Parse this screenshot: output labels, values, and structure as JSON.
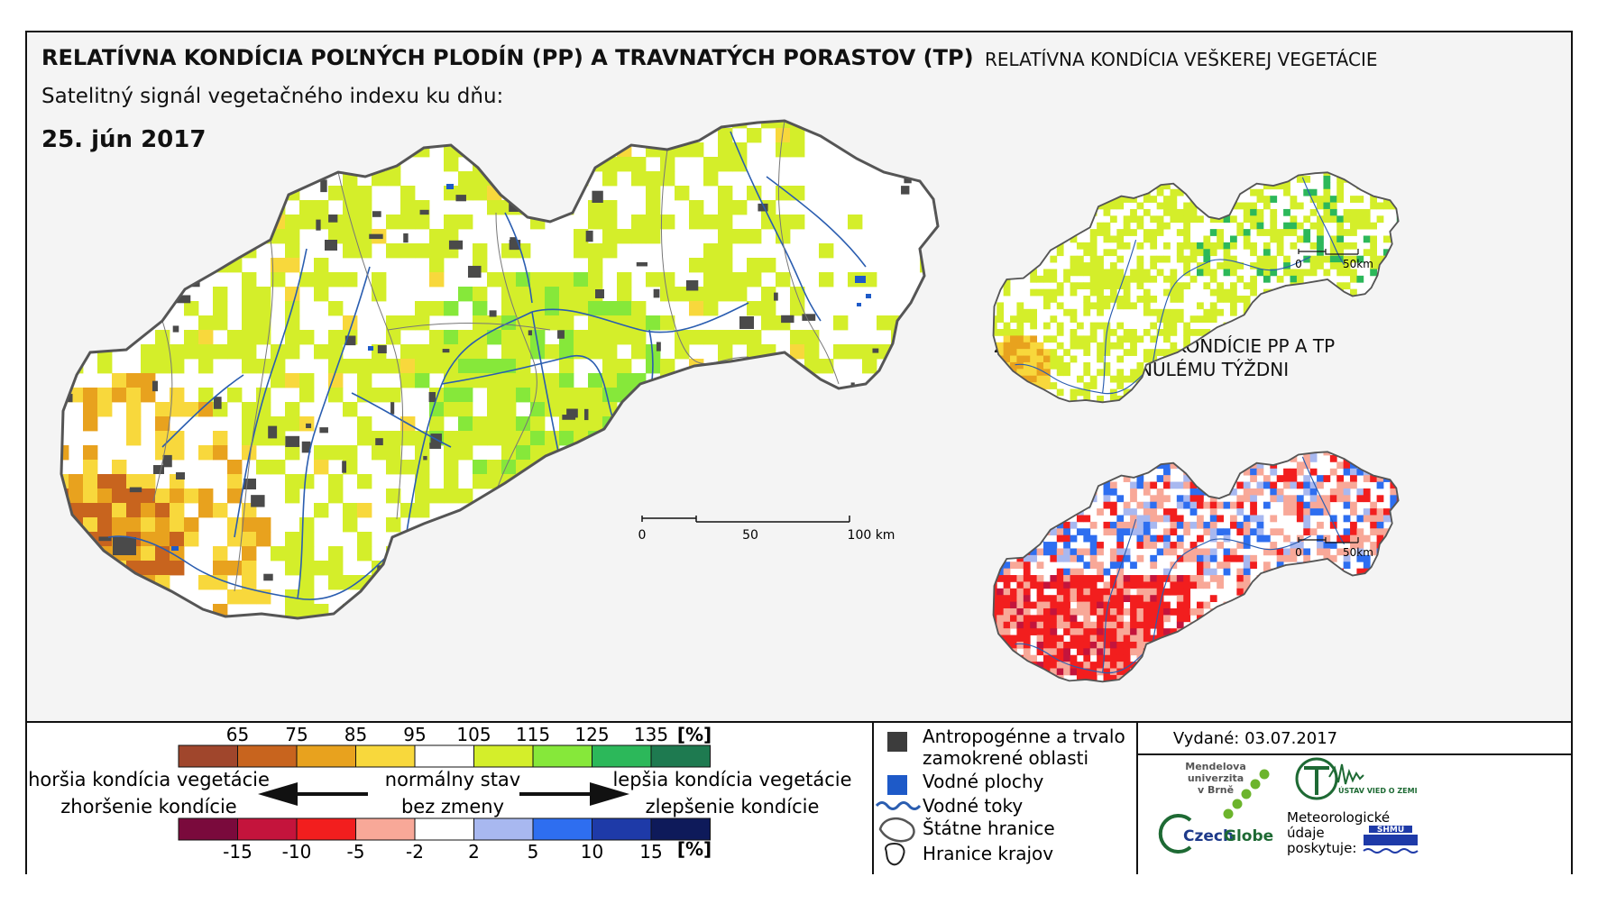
{
  "title_main": "RELATÍVNA KONDÍCIA POĽNÝCH PLODÍN (PP) A TRAVNATÝCH PORASTOV (TP)",
  "subtitle": "Satelitný signál vegetačného indexu ku dňu:",
  "date": "25. jún 2017",
  "title_inset_top": "RELATÍVNA KONDÍCIA VEŠKEREJ VEGETÁCIE",
  "title_inset_bottom_line1": "ZMENA RELATÍVNEJ KONDÍCIE PP A TP",
  "title_inset_bottom_line2": "OPROTI MINULÉMU TÝŽDNI",
  "scalebar_main": {
    "labels": [
      "0",
      "50",
      "100 km"
    ]
  },
  "scalebar_inset": {
    "labels": [
      "0",
      "50km"
    ]
  },
  "legend_condition": {
    "ticks": [
      "65",
      "75",
      "85",
      "95",
      "105",
      "115",
      "125",
      "135"
    ],
    "unit": "[%]",
    "colors": [
      "#a0462c",
      "#c8641e",
      "#e8a21e",
      "#f8d83c",
      "#ffffff",
      "#d4ee2a",
      "#86e83a",
      "#2cb85a",
      "#1e7a50"
    ]
  },
  "legend_change": {
    "ticks": [
      "-15",
      "-10",
      "-5",
      "-2",
      "2",
      "5",
      "10",
      "15"
    ],
    "unit": "[%]",
    "colors": [
      "#7a0a3c",
      "#c4143c",
      "#f21e1e",
      "#f8a898",
      "#ffffff",
      "#a8b8f0",
      "#2e6ef0",
      "#1e3aa8",
      "#0e1a5a"
    ]
  },
  "legend_text": {
    "worse1": "horšia kondícia vegetácie",
    "worse2": "zhoršenie kondície",
    "normal1": "normálny stav",
    "normal2": "bez zmeny",
    "better1": "lepšia kondícia vegetácie",
    "better2": "zlepšenie kondície"
  },
  "legend_symbols": {
    "anthropogenic_line1": "Antropogénne a trvalo",
    "anthropogenic_line2": "zamokrené oblasti",
    "water_areas": "Vodné plochy",
    "rivers": "Vodné toky",
    "state_border": "Štátne hranice",
    "region_border": "Hranice krajov"
  },
  "issued": "Vydané: 03.07.2017",
  "logos": {
    "mendel_line1": "Mendelova",
    "mendel_line2": "univerzita",
    "mendel_line3": "v Brně",
    "czechglobe_czech": "Czech",
    "czechglobe_globe": "Globe",
    "uvz": "ÚSTAV VIED O ZEMI",
    "meteo_line1": "Meteorologické",
    "meteo_line2": "údaje",
    "meteo_line3": "poskytuje:",
    "shmu": "SHMÚ"
  },
  "map_colors": {
    "normal": "#ffffff",
    "slightly_better": "#d4ee2a",
    "better": "#86e83a",
    "much_better": "#2cb85a",
    "worse_light": "#f8d83c",
    "worse": "#e8a21e",
    "worse_strong": "#c8641e",
    "anthropogenic": "#4a4a4a",
    "water": "#1e5ac8",
    "rivers": "#2a5db0",
    "borders": "#555555"
  }
}
